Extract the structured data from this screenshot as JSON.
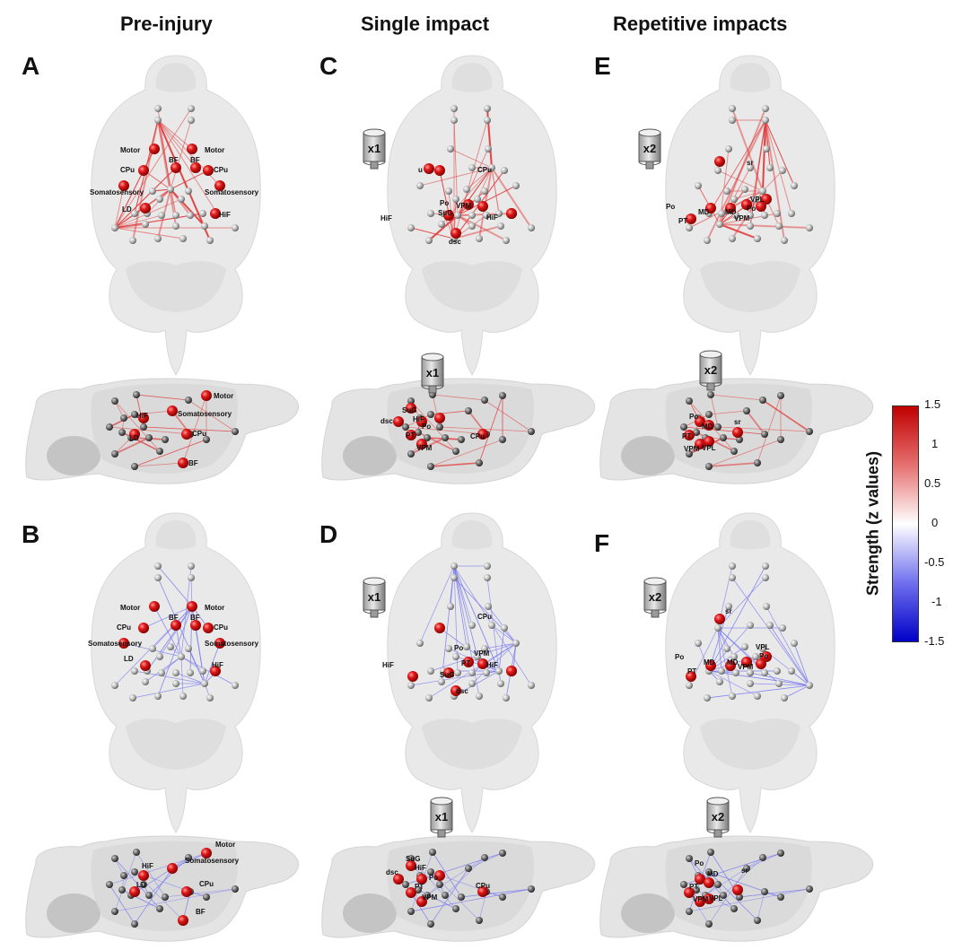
{
  "columns": [
    "Pre-injury",
    "Single impact",
    "Repetitive impacts"
  ],
  "panels": {
    "A": {
      "letter": "A",
      "sign": "pos",
      "impact": "",
      "top_labels": [
        "Motor",
        "Motor",
        "BF",
        "BF",
        "CPu",
        "CPu",
        "Somatosensory",
        "Somatosensory",
        "LD",
        "HiF"
      ],
      "side_labels": [
        "Motor",
        "Somatosensory",
        "HiF",
        "LD",
        "CPu",
        "BF"
      ]
    },
    "B": {
      "letter": "B",
      "sign": "neg",
      "impact": "",
      "top_labels": [
        "Motor",
        "Motor",
        "BF",
        "BF",
        "CPu",
        "CPu",
        "Somatosensory",
        "Somatosensory",
        "LD",
        "HiF"
      ],
      "side_labels": [
        "Motor",
        "Somatosensory",
        "HiF",
        "LD",
        "CPu",
        "BF"
      ]
    },
    "C": {
      "letter": "C",
      "sign": "pos",
      "impact": "x1",
      "top_labels": [
        "u",
        "CPu",
        "Po",
        "VPM",
        "SuG",
        "HiF",
        "HiF",
        "dsc"
      ],
      "side_labels": [
        "SuG",
        "HiF",
        "dsc",
        "Po",
        "PT",
        "VPM",
        "CPu"
      ]
    },
    "D": {
      "letter": "D",
      "sign": "neg",
      "impact": "x1",
      "top_labels": [
        "CPu",
        "Po",
        "VPM",
        "PT",
        "HiF",
        "HiF",
        "SuG",
        "dsc"
      ],
      "side_labels": [
        "SuG",
        "HiF",
        "dsc",
        "Po",
        "PT",
        "VPM",
        "CPu"
      ]
    },
    "E": {
      "letter": "E",
      "sign": "pos",
      "impact": "x2",
      "top_labels": [
        "sr",
        "VPL",
        "Po",
        "MD",
        "MD",
        "Po",
        "PT",
        "VPM"
      ],
      "side_labels": [
        "Po",
        "MD",
        "sr",
        "PT",
        "VPM",
        "VPL"
      ]
    },
    "F": {
      "letter": "F",
      "sign": "neg",
      "impact": "x2",
      "top_labels": [
        "sr",
        "VPL",
        "Po",
        "MD",
        "MD",
        "Po",
        "PT",
        "VPM"
      ],
      "side_labels": [
        "Po",
        "MD",
        "sr",
        "PT",
        "VPM",
        "VPL"
      ]
    }
  },
  "colorbar": {
    "title": "Strength (z values)",
    "ticks": [
      "1.5",
      "1",
      "0.5",
      "0",
      "-0.5",
      "-1",
      "-1.5"
    ],
    "max_color": "#c00000",
    "mid_color": "#ffffff",
    "min_color": "#0000c8"
  }
}
